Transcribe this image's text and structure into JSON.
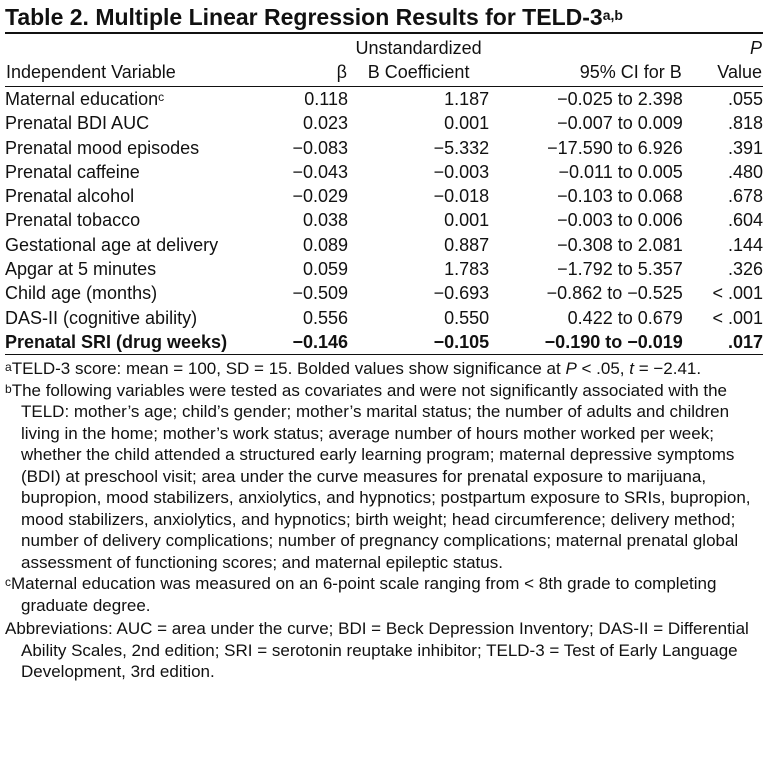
{
  "title": "Table 2. Multiple Linear Regression Results for TELD-3",
  "title_superscript": "a,b",
  "header": {
    "col_variable": "Independent Variable",
    "col_beta": "β",
    "col_coef_line1": "Unstandardized",
    "col_coef_line2": "B Coefficient",
    "col_ci": "95% CI for B",
    "col_p_line1": "P",
    "col_p_line2": "Value"
  },
  "rows": [
    {
      "variable": "Maternal education",
      "sup": "c",
      "beta": "0.118",
      "coef": "1.187",
      "ci": "−0.025 to 2.398",
      "p": ".055"
    },
    {
      "variable": "Prenatal BDI AUC",
      "sup": "",
      "beta": "0.023",
      "coef": "0.001",
      "ci": "−0.007 to 0.009",
      "p": ".818"
    },
    {
      "variable": "Prenatal mood episodes",
      "sup": "",
      "beta": "−0.083",
      "coef": "−5.332",
      "ci": "−17.590 to 6.926",
      "p": ".391"
    },
    {
      "variable": "Prenatal caffeine",
      "sup": "",
      "beta": "−0.043",
      "coef": "−0.003",
      "ci": "−0.011 to 0.005",
      "p": ".480"
    },
    {
      "variable": "Prenatal alcohol",
      "sup": "",
      "beta": "−0.029",
      "coef": "−0.018",
      "ci": "−0.103 to 0.068",
      "p": ".678"
    },
    {
      "variable": "Prenatal tobacco",
      "sup": "",
      "beta": "0.038",
      "coef": "0.001",
      "ci": "−0.003 to 0.006",
      "p": ".604"
    },
    {
      "variable": "Gestational age at delivery",
      "sup": "",
      "beta": "0.089",
      "coef": "0.887",
      "ci": "−0.308 to 2.081",
      "p": ".144"
    },
    {
      "variable": "Apgar at 5 minutes",
      "sup": "",
      "beta": "0.059",
      "coef": "1.783",
      "ci": "−1.792 to 5.357",
      "p": ".326"
    },
    {
      "variable": "Child age (months)",
      "sup": "",
      "beta": "−0.509",
      "coef": "−0.693",
      "ci": "−0.862 to −0.525",
      "p": "< .001"
    },
    {
      "variable": "DAS-II (cognitive ability)",
      "sup": "",
      "beta": "0.556",
      "coef": "0.550",
      "ci": "0.422 to 0.679",
      "p": "< .001"
    },
    {
      "variable": "Prenatal SRI (drug weeks)",
      "sup": "",
      "beta": "−0.146",
      "coef": "−0.105",
      "ci": "−0.190 to −0.019",
      "p": ".017"
    }
  ],
  "notes": {
    "a_mark": "a",
    "a_text_1": "TELD-3 score: mean = 100, SD = 15. Bolded values show significance at ",
    "a_italic_p": "P",
    "a_text_2": " < .05, ",
    "a_italic_t": "t",
    "a_text_3": " = −2.41.",
    "b_mark": "b",
    "b_text": "The following variables were tested as covariates and were not significantly associated with the TELD: mother’s age; child’s gender; mother’s marital status; the number of adults and children living in the home; mother’s work status; average number of hours mother worked per week; whether the child attended a structured early learning program; maternal depressive symptoms (BDI) at preschool visit; area under the curve measures for prenatal exposure to marijuana, bupropion, mood stabilizers, anxiolytics, and hypnotics; postpartum exposure to SRIs, bupropion, mood stabilizers, anxiolytics, and hypnotics; birth weight; head circumference; delivery method; number of delivery complications; number of pregnancy complications; maternal prenatal global assessment of functioning scores; and maternal epileptic status.",
    "c_mark": "c",
    "c_text": "Maternal education was measured on an 6-point scale ranging from < 8th grade to completing graduate degree.",
    "abbreviations": "Abbreviations: AUC = area under the curve; BDI = Beck Depression Inventory; DAS-II = Differential Ability Scales, 2nd edition; SRI = serotonin reuptake inhibitor; TELD-3 = Test of Early Language Development, 3rd edition."
  }
}
